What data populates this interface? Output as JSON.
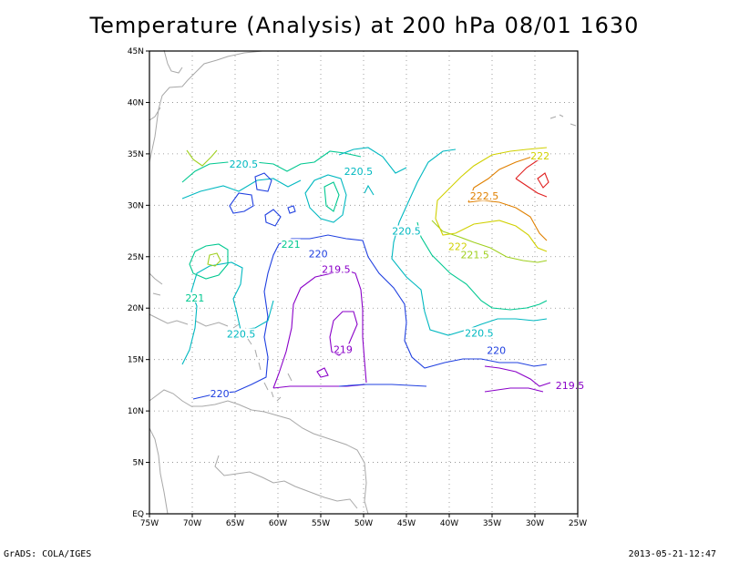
{
  "title": "Temperature (Analysis) at 200 hPa 08/01 1630",
  "footer": {
    "credit": "GrADS: COLA/IGES",
    "timestamp": "2013-05-21-12:47"
  },
  "map": {
    "lon_range": [
      -75,
      -25
    ],
    "lat_range": [
      0,
      45
    ],
    "lon_ticks": [
      {
        "lon": -75,
        "label": "75W"
      },
      {
        "lon": -70,
        "label": "70W"
      },
      {
        "lon": -65,
        "label": "65W"
      },
      {
        "lon": -60,
        "label": "60W"
      },
      {
        "lon": -55,
        "label": "55W"
      },
      {
        "lon": -50,
        "label": "50W"
      },
      {
        "lon": -45,
        "label": "45W"
      },
      {
        "lon": -40,
        "label": "40W"
      },
      {
        "lon": -35,
        "label": "35W"
      },
      {
        "lon": -30,
        "label": "30W"
      },
      {
        "lon": -25,
        "label": "25W"
      }
    ],
    "lat_ticks": [
      {
        "lat": 0,
        "label": "EQ"
      },
      {
        "lat": 5,
        "label": "5N"
      },
      {
        "lat": 10,
        "label": "10N"
      },
      {
        "lat": 15,
        "label": "15N"
      },
      {
        "lat": 20,
        "label": "20N"
      },
      {
        "lat": 25,
        "label": "25N"
      },
      {
        "lat": 30,
        "label": "30N"
      },
      {
        "lat": 35,
        "label": "35N"
      },
      {
        "lat": 40,
        "label": "40N"
      },
      {
        "lat": 45,
        "label": "45N"
      }
    ],
    "grid": "dotted",
    "colors": {
      "219": "#8a00c8",
      "219.5": "#8a00c8",
      "220": "#2040e0",
      "220.5": "#00b8c0",
      "221": "#00c890",
      "221.5": "#a0d020",
      "222": "#d0d000",
      "222.5": "#e08000",
      "223": "#e02020",
      "coast": "#a8a8a8"
    },
    "contour_labels": [
      {
        "text": "220.5",
        "lon": -64.0,
        "lat": 34.0,
        "level": "220.5"
      },
      {
        "text": "220.5",
        "lon": -50.6,
        "lat": 33.3,
        "level": "220.5"
      },
      {
        "text": "220.5",
        "lon": -45.0,
        "lat": 27.5,
        "level": "220.5"
      },
      {
        "text": "221",
        "lon": -58.5,
        "lat": 26.2,
        "level": "221"
      },
      {
        "text": "220",
        "lon": -55.3,
        "lat": 25.3,
        "level": "220"
      },
      {
        "text": "222.5",
        "lon": -35.9,
        "lat": 30.9,
        "level": "222.5"
      },
      {
        "text": "222",
        "lon": -29.4,
        "lat": 34.8,
        "level": "222"
      },
      {
        "text": "222",
        "lon": -39.0,
        "lat": 26.0,
        "level": "222"
      },
      {
        "text": "221.5",
        "lon": -37.0,
        "lat": 25.2,
        "level": "221.5"
      },
      {
        "text": "219.5",
        "lon": -53.2,
        "lat": 23.8,
        "level": "219.5"
      },
      {
        "text": "221",
        "lon": -69.7,
        "lat": 21.0,
        "level": "221"
      },
      {
        "text": "220.5",
        "lon": -64.3,
        "lat": 17.5,
        "level": "220.5"
      },
      {
        "text": "220.5",
        "lon": -36.5,
        "lat": 17.6,
        "level": "220.5"
      },
      {
        "text": "219",
        "lon": -52.4,
        "lat": 16.0,
        "level": "219"
      },
      {
        "text": "220",
        "lon": -34.5,
        "lat": 15.9,
        "level": "220"
      },
      {
        "text": "220",
        "lon": -66.8,
        "lat": 11.7,
        "level": "220"
      },
      {
        "text": "219.5",
        "lon": -25.9,
        "lat": 12.5,
        "level": "219.5"
      }
    ]
  }
}
